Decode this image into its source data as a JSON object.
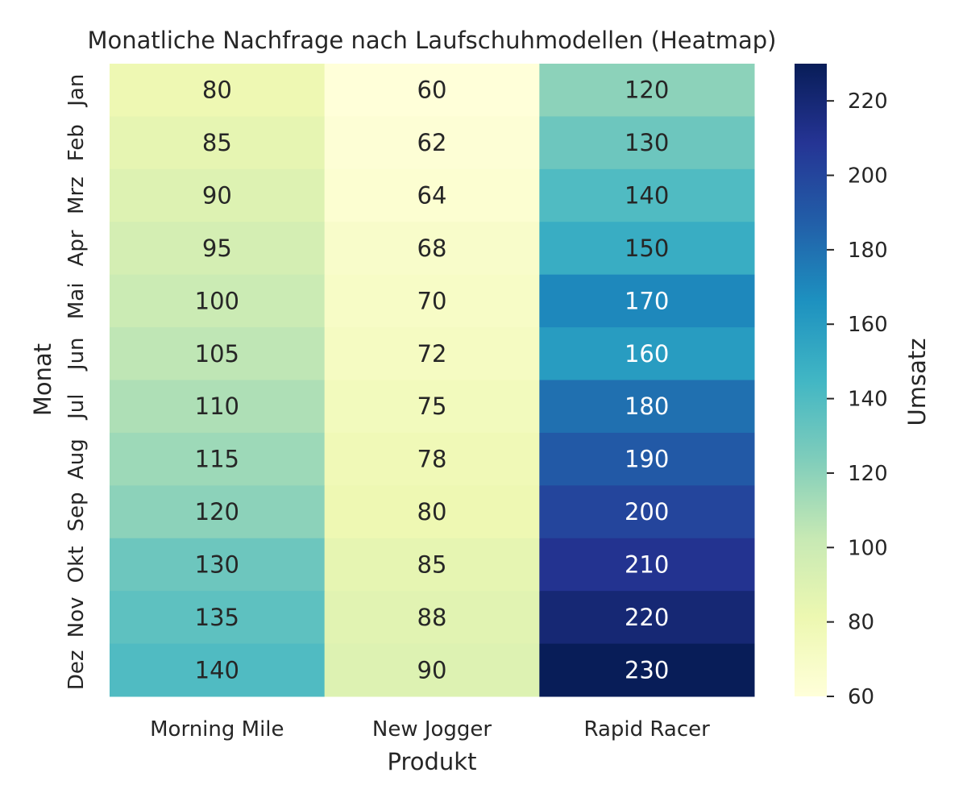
{
  "chart_data": {
    "type": "heatmap",
    "title": "Monatliche Nachfrage nach Laufschuhmodellen (Heatmap)",
    "xlabel": "Produkt",
    "ylabel": "Monat",
    "x_categories": [
      "Morning Mile",
      "New Jogger",
      "Rapid Racer"
    ],
    "y_categories": [
      "Jan",
      "Feb",
      "Mrz",
      "Apr",
      "Mai",
      "Jun",
      "Jul",
      "Aug",
      "Sep",
      "Okt",
      "Nov",
      "Dez"
    ],
    "values": [
      [
        80,
        60,
        120
      ],
      [
        85,
        62,
        130
      ],
      [
        90,
        64,
        140
      ],
      [
        95,
        68,
        150
      ],
      [
        100,
        70,
        170
      ],
      [
        105,
        72,
        160
      ],
      [
        110,
        75,
        180
      ],
      [
        115,
        78,
        190
      ],
      [
        120,
        80,
        200
      ],
      [
        130,
        85,
        210
      ],
      [
        135,
        88,
        220
      ],
      [
        140,
        90,
        230
      ]
    ],
    "colorbar": {
      "label": "Umsatz",
      "range": [
        60,
        230
      ],
      "ticks": [
        60,
        80,
        100,
        120,
        140,
        160,
        180,
        200,
        220
      ],
      "colormap": "YlGnBu",
      "colors": [
        "#ffffd9",
        "#edf8b1",
        "#c7e9b4",
        "#7fcdbb",
        "#41b6c4",
        "#1d91c0",
        "#225ea8",
        "#253494",
        "#081d58"
      ]
    },
    "annotation_dark_color": "#262626",
    "annotation_light_color": "#ffffff",
    "grid": false
  }
}
